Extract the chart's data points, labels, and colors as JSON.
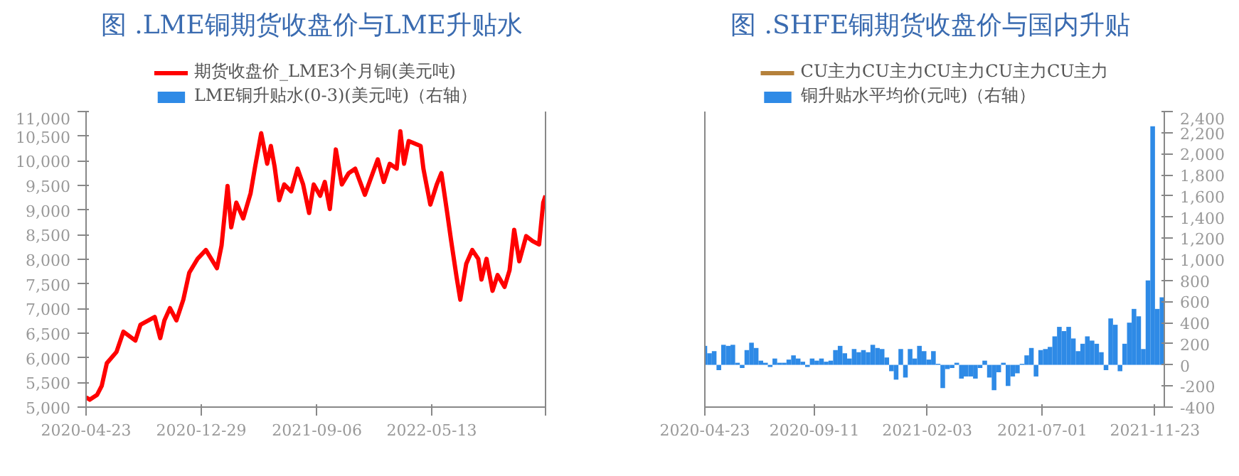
{
  "chart_data": [
    {
      "type": "line",
      "title": "图  .LME铜期货收盘价与LME升贴水",
      "legend": "top",
      "grid": false,
      "x": [
        "2020-04-23",
        "2020-05-01",
        "2020-05-17",
        "2020-05-27",
        "2020-06-07",
        "2020-06-28",
        "2020-07-13",
        "2020-08-08",
        "2020-08-19",
        "2020-09-19",
        "2020-10-01",
        "2020-10-10",
        "2020-10-22",
        "2020-11-05",
        "2020-11-20",
        "2020-12-03",
        "2020-12-21",
        "2021-01-08",
        "2021-02-01",
        "2021-02-11",
        "2021-02-24",
        "2021-03-04",
        "2021-03-15",
        "2021-03-30",
        "2021-04-15",
        "2021-04-25",
        "2021-05-08",
        "2021-05-21",
        "2021-05-29",
        "2021-06-06",
        "2021-06-16",
        "2021-06-27",
        "2021-07-12",
        "2021-07-26",
        "2021-08-07",
        "2021-08-20",
        "2021-08-30",
        "2021-09-13",
        "2021-09-23",
        "2021-10-04",
        "2021-10-17",
        "2021-10-30",
        "2021-11-14",
        "2021-11-28",
        "2021-12-19",
        "2022-01-05",
        "2022-01-16",
        "2022-01-29",
        "2022-02-11",
        "2022-02-26",
        "2022-03-06",
        "2022-03-14",
        "2022-03-24",
        "2022-04-19",
        "2022-04-25",
        "2022-05-10",
        "2022-05-24",
        "2022-06-03",
        "2022-06-16",
        "2022-06-24",
        "2022-07-06",
        "2022-07-14",
        "2022-07-27",
        "2022-08-09",
        "2022-08-22",
        "2022-08-29",
        "2022-09-09",
        "2022-09-22",
        "2022-10-03",
        "2022-10-18",
        "2022-10-29",
        "2022-11-08",
        "2022-11-19",
        "2022-12-04",
        "2022-12-18",
        "2023-01-01",
        "2023-01-10",
        "2023-01-15"
      ],
      "series": [
        {
          "name": "期货收盘价_LME3个月铜(美元吨)",
          "color": "#ff0000",
          "values": [
            5200,
            5150,
            5250,
            5430,
            5890,
            6120,
            6530,
            6350,
            6670,
            6830,
            6400,
            6760,
            7010,
            6760,
            7180,
            7730,
            8010,
            8190,
            7820,
            8280,
            9490,
            8650,
            9150,
            8830,
            9340,
            9890,
            10560,
            9940,
            10300,
            9890,
            9200,
            9520,
            9380,
            9840,
            9520,
            8940,
            9520,
            9290,
            9570,
            9020,
            10230,
            9520,
            9750,
            9840,
            9310,
            9750,
            10030,
            9570,
            9940,
            9840,
            10600,
            9940,
            10400,
            10300,
            9840,
            9110,
            9520,
            9750,
            8920,
            8390,
            7640,
            7180,
            7910,
            8190,
            8010,
            7590,
            8010,
            7360,
            7680,
            7440,
            7780,
            8600,
            7960,
            8470,
            8370,
            8300,
            9150,
            9290
          ]
        },
        {
          "name": "LME铜升贴水(0-3)(美元吨)（右轴）",
          "type": "bar",
          "axis": "y2",
          "color": "#2e8ae6",
          "values": [
            null,
            null,
            null,
            null,
            null,
            null,
            null,
            null,
            null,
            null,
            null,
            null,
            null,
            null,
            null,
            null,
            null,
            null,
            null,
            null,
            null,
            null,
            null,
            null,
            null,
            null,
            null,
            null,
            null,
            null,
            null,
            null,
            null,
            null,
            null,
            null,
            null,
            null,
            null,
            null,
            null,
            null,
            null,
            null,
            null,
            null,
            null,
            null,
            null,
            null,
            null,
            null,
            null,
            null,
            null,
            null,
            null,
            null,
            null,
            null,
            null,
            null,
            null,
            null,
            null,
            null,
            null,
            null,
            null,
            null,
            null,
            null,
            null,
            null,
            null,
            null,
            null,
            null
          ]
        }
      ],
      "xlim": [
        "2020-04-23",
        "2023-01-15"
      ],
      "xticks": [
        {
          "value": "2020-04-23",
          "label": "2020-04-23"
        },
        {
          "value": "2020-12-29",
          "label": "2020-12-29"
        },
        {
          "value": "2021-09-06",
          "label": "2021-09-06"
        },
        {
          "value": "2022-05-13",
          "label": "2022-05-13"
        },
        {
          "value": "2023-01-15",
          "label": null
        }
      ],
      "ylim": [
        5000,
        11000
      ],
      "yticks": [
        {
          "value": 5000,
          "label": "5,000"
        },
        {
          "value": 5500,
          "label": "5,500"
        },
        {
          "value": 6000,
          "label": "6,000"
        },
        {
          "value": 6500,
          "label": "6,500"
        },
        {
          "value": 7000,
          "label": "7,000"
        },
        {
          "value": 7500,
          "label": "7,500"
        },
        {
          "value": 8000,
          "label": "8,000"
        },
        {
          "value": 8500,
          "label": "8,500"
        },
        {
          "value": 9000,
          "label": "9,000"
        },
        {
          "value": 9500,
          "label": "9,500"
        },
        {
          "value": 10000,
          "label": "10,000"
        },
        {
          "value": 10500,
          "label": "10,500"
        },
        {
          "value": 11000,
          "label": "11,000"
        }
      ]
    },
    {
      "type": "bar",
      "title": "图  .SHFE铜期货收盘价与国内升贴",
      "legend": "top",
      "grid": false,
      "x": [
        "2020-04-23",
        "2020-04-29",
        "2020-05-05",
        "2020-05-11",
        "2020-05-17",
        "2020-05-23",
        "2020-05-29",
        "2020-06-04",
        "2020-06-10",
        "2020-06-16",
        "2020-06-22",
        "2020-06-28",
        "2020-07-04",
        "2020-07-10",
        "2020-07-16",
        "2020-07-22",
        "2020-07-28",
        "2020-08-03",
        "2020-08-09",
        "2020-08-15",
        "2020-08-21",
        "2020-08-27",
        "2020-09-02",
        "2020-09-08",
        "2020-09-14",
        "2020-09-20",
        "2020-09-26",
        "2020-10-02",
        "2020-10-08",
        "2020-10-14",
        "2020-10-20",
        "2020-10-26",
        "2020-11-01",
        "2020-11-07",
        "2020-11-13",
        "2020-11-19",
        "2020-11-25",
        "2020-12-01",
        "2020-12-07",
        "2020-12-13",
        "2020-12-19",
        "2020-12-25",
        "2020-12-31",
        "2021-01-06",
        "2021-01-12",
        "2021-01-18",
        "2021-01-24",
        "2021-01-30",
        "2021-02-05",
        "2021-02-11",
        "2021-02-17",
        "2021-02-23",
        "2021-03-01",
        "2021-03-07",
        "2021-03-13",
        "2021-03-19",
        "2021-03-25",
        "2021-03-31",
        "2021-04-06",
        "2021-04-12",
        "2021-04-18",
        "2021-04-24",
        "2021-04-30",
        "2021-05-06",
        "2021-05-12",
        "2021-05-18",
        "2021-05-24",
        "2021-05-30",
        "2021-06-05",
        "2021-06-11",
        "2021-06-17",
        "2021-06-23",
        "2021-06-29",
        "2021-07-05",
        "2021-07-11",
        "2021-07-17",
        "2021-07-23",
        "2021-07-29",
        "2021-08-04",
        "2021-08-10",
        "2021-08-16",
        "2021-08-22",
        "2021-08-28",
        "2021-09-03",
        "2021-09-09",
        "2021-09-15",
        "2021-09-21",
        "2021-09-27",
        "2021-10-03",
        "2021-10-09",
        "2021-10-15",
        "2021-10-21",
        "2021-10-27",
        "2021-11-02",
        "2021-11-08",
        "2021-11-14",
        "2021-11-20",
        "2021-11-26",
        "2021-12-02"
      ],
      "series": [
        {
          "name": "CU主力CU主力CU主力CU主力CU主力",
          "type": "line",
          "color": "#b5813b",
          "values": [
            null,
            null,
            null,
            null,
            null,
            null,
            null,
            null,
            null,
            null,
            null,
            null,
            null,
            null,
            null,
            null,
            null,
            null,
            null,
            null,
            null,
            null,
            null,
            null,
            null,
            null,
            null,
            null,
            null,
            null,
            null,
            null,
            null,
            null,
            null,
            null,
            null,
            null,
            null,
            null,
            null,
            null,
            null,
            null,
            null,
            null,
            null,
            null,
            null,
            null,
            null,
            null,
            null,
            null,
            null,
            null,
            null,
            null,
            null,
            null,
            null,
            null,
            null,
            null,
            null,
            null,
            null,
            null,
            null,
            null,
            null,
            null,
            null,
            null,
            null,
            null,
            null,
            null,
            null,
            null,
            null,
            null,
            null,
            null,
            null,
            null,
            null,
            null,
            null,
            null,
            null,
            null,
            null,
            null,
            null,
            null,
            null,
            null,
            null
          ]
        },
        {
          "name": "铜升贴水平均价(元吨)（右轴）",
          "axis": "y2",
          "color": "#2e8ae6",
          "values": [
            180,
            110,
            130,
            -50,
            190,
            180,
            190,
            20,
            -30,
            140,
            210,
            160,
            40,
            20,
            -20,
            60,
            20,
            20,
            50,
            90,
            60,
            30,
            -20,
            60,
            40,
            60,
            30,
            40,
            140,
            180,
            110,
            60,
            150,
            120,
            140,
            120,
            190,
            160,
            150,
            70,
            -60,
            -140,
            150,
            -120,
            150,
            60,
            180,
            130,
            50,
            130,
            10,
            -220,
            -40,
            -30,
            20,
            -130,
            -110,
            -110,
            -130,
            -30,
            40,
            -120,
            -240,
            -70,
            20,
            -200,
            -110,
            -80,
            10,
            90,
            160,
            -110,
            140,
            150,
            170,
            270,
            360,
            320,
            360,
            250,
            130,
            200,
            270,
            230,
            200,
            120,
            -50,
            440,
            380,
            -60,
            200,
            400,
            530,
            460,
            150,
            800,
            2260,
            530,
            640
          ]
        }
      ],
      "xlim": [
        "2020-04-23",
        "2021-12-05"
      ],
      "xticks": [
        {
          "value": "2020-04-23",
          "label": "2020-04-23"
        },
        {
          "value": "2020-09-11",
          "label": "2020-09-11"
        },
        {
          "value": "2021-02-03",
          "label": "2021-02-03"
        },
        {
          "value": "2021-07-01",
          "label": "2021-07-01"
        },
        {
          "value": "2021-11-23",
          "label": "2021-11-23"
        }
      ],
      "y2lim": [
        -400,
        2400
      ],
      "y2ticks": [
        -400,
        -200,
        0,
        200,
        400,
        600,
        800,
        {
          "value": 1000,
          "label": "1,000"
        },
        {
          "value": 1200,
          "label": "1,200"
        },
        {
          "value": 1400,
          "label": "1,400"
        },
        {
          "value": 1600,
          "label": "1,600"
        },
        {
          "value": 1800,
          "label": "1,800"
        },
        {
          "value": 2000,
          "label": "2,000"
        },
        {
          "value": 2200,
          "label": "2,200"
        },
        {
          "value": 2400,
          "label": "2,400"
        }
      ]
    }
  ]
}
